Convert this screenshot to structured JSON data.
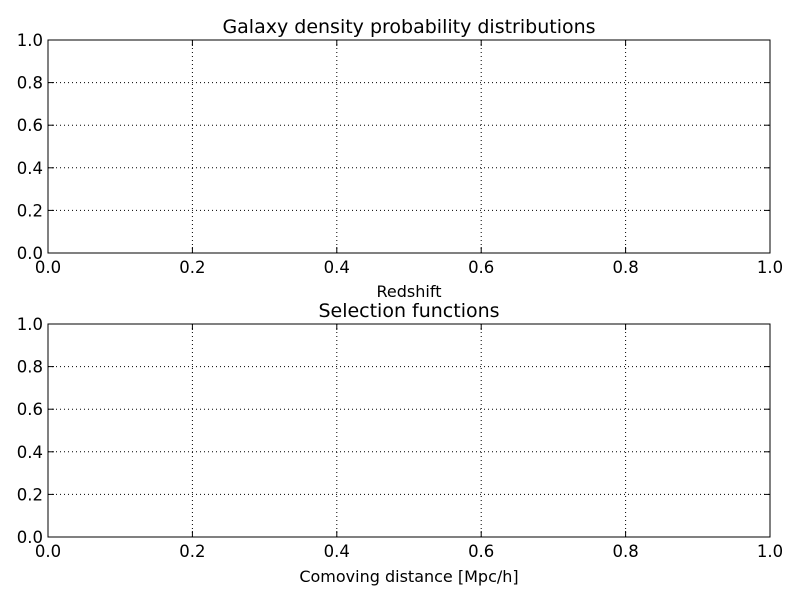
{
  "colors": {
    "background": "#ffffff",
    "axes": "#000000",
    "grid": "#000000",
    "text": "#000000"
  },
  "chart_data": [
    {
      "type": "line",
      "title": "Galaxy density probability distributions",
      "xlabel": "Redshift",
      "ylabel": "",
      "xlim": [
        0.0,
        1.0
      ],
      "ylim": [
        0.0,
        1.0
      ],
      "x_ticks": [
        "0.0",
        "0.2",
        "0.4",
        "0.6",
        "0.8",
        "1.0"
      ],
      "y_ticks": [
        "0.0",
        "0.2",
        "0.4",
        "0.6",
        "0.8",
        "1.0"
      ],
      "grid": true,
      "grid_style": "dotted",
      "series": []
    },
    {
      "type": "line",
      "title": "Selection functions",
      "xlabel": "Comoving distance [Mpc/h]",
      "ylabel": "",
      "xlim": [
        0.0,
        1.0
      ],
      "ylim": [
        0.0,
        1.0
      ],
      "x_ticks": [
        "0.0",
        "0.2",
        "0.4",
        "0.6",
        "0.8",
        "1.0"
      ],
      "y_ticks": [
        "0.0",
        "0.2",
        "0.4",
        "0.6",
        "0.8",
        "1.0"
      ],
      "grid": true,
      "grid_style": "dotted",
      "series": []
    }
  ]
}
